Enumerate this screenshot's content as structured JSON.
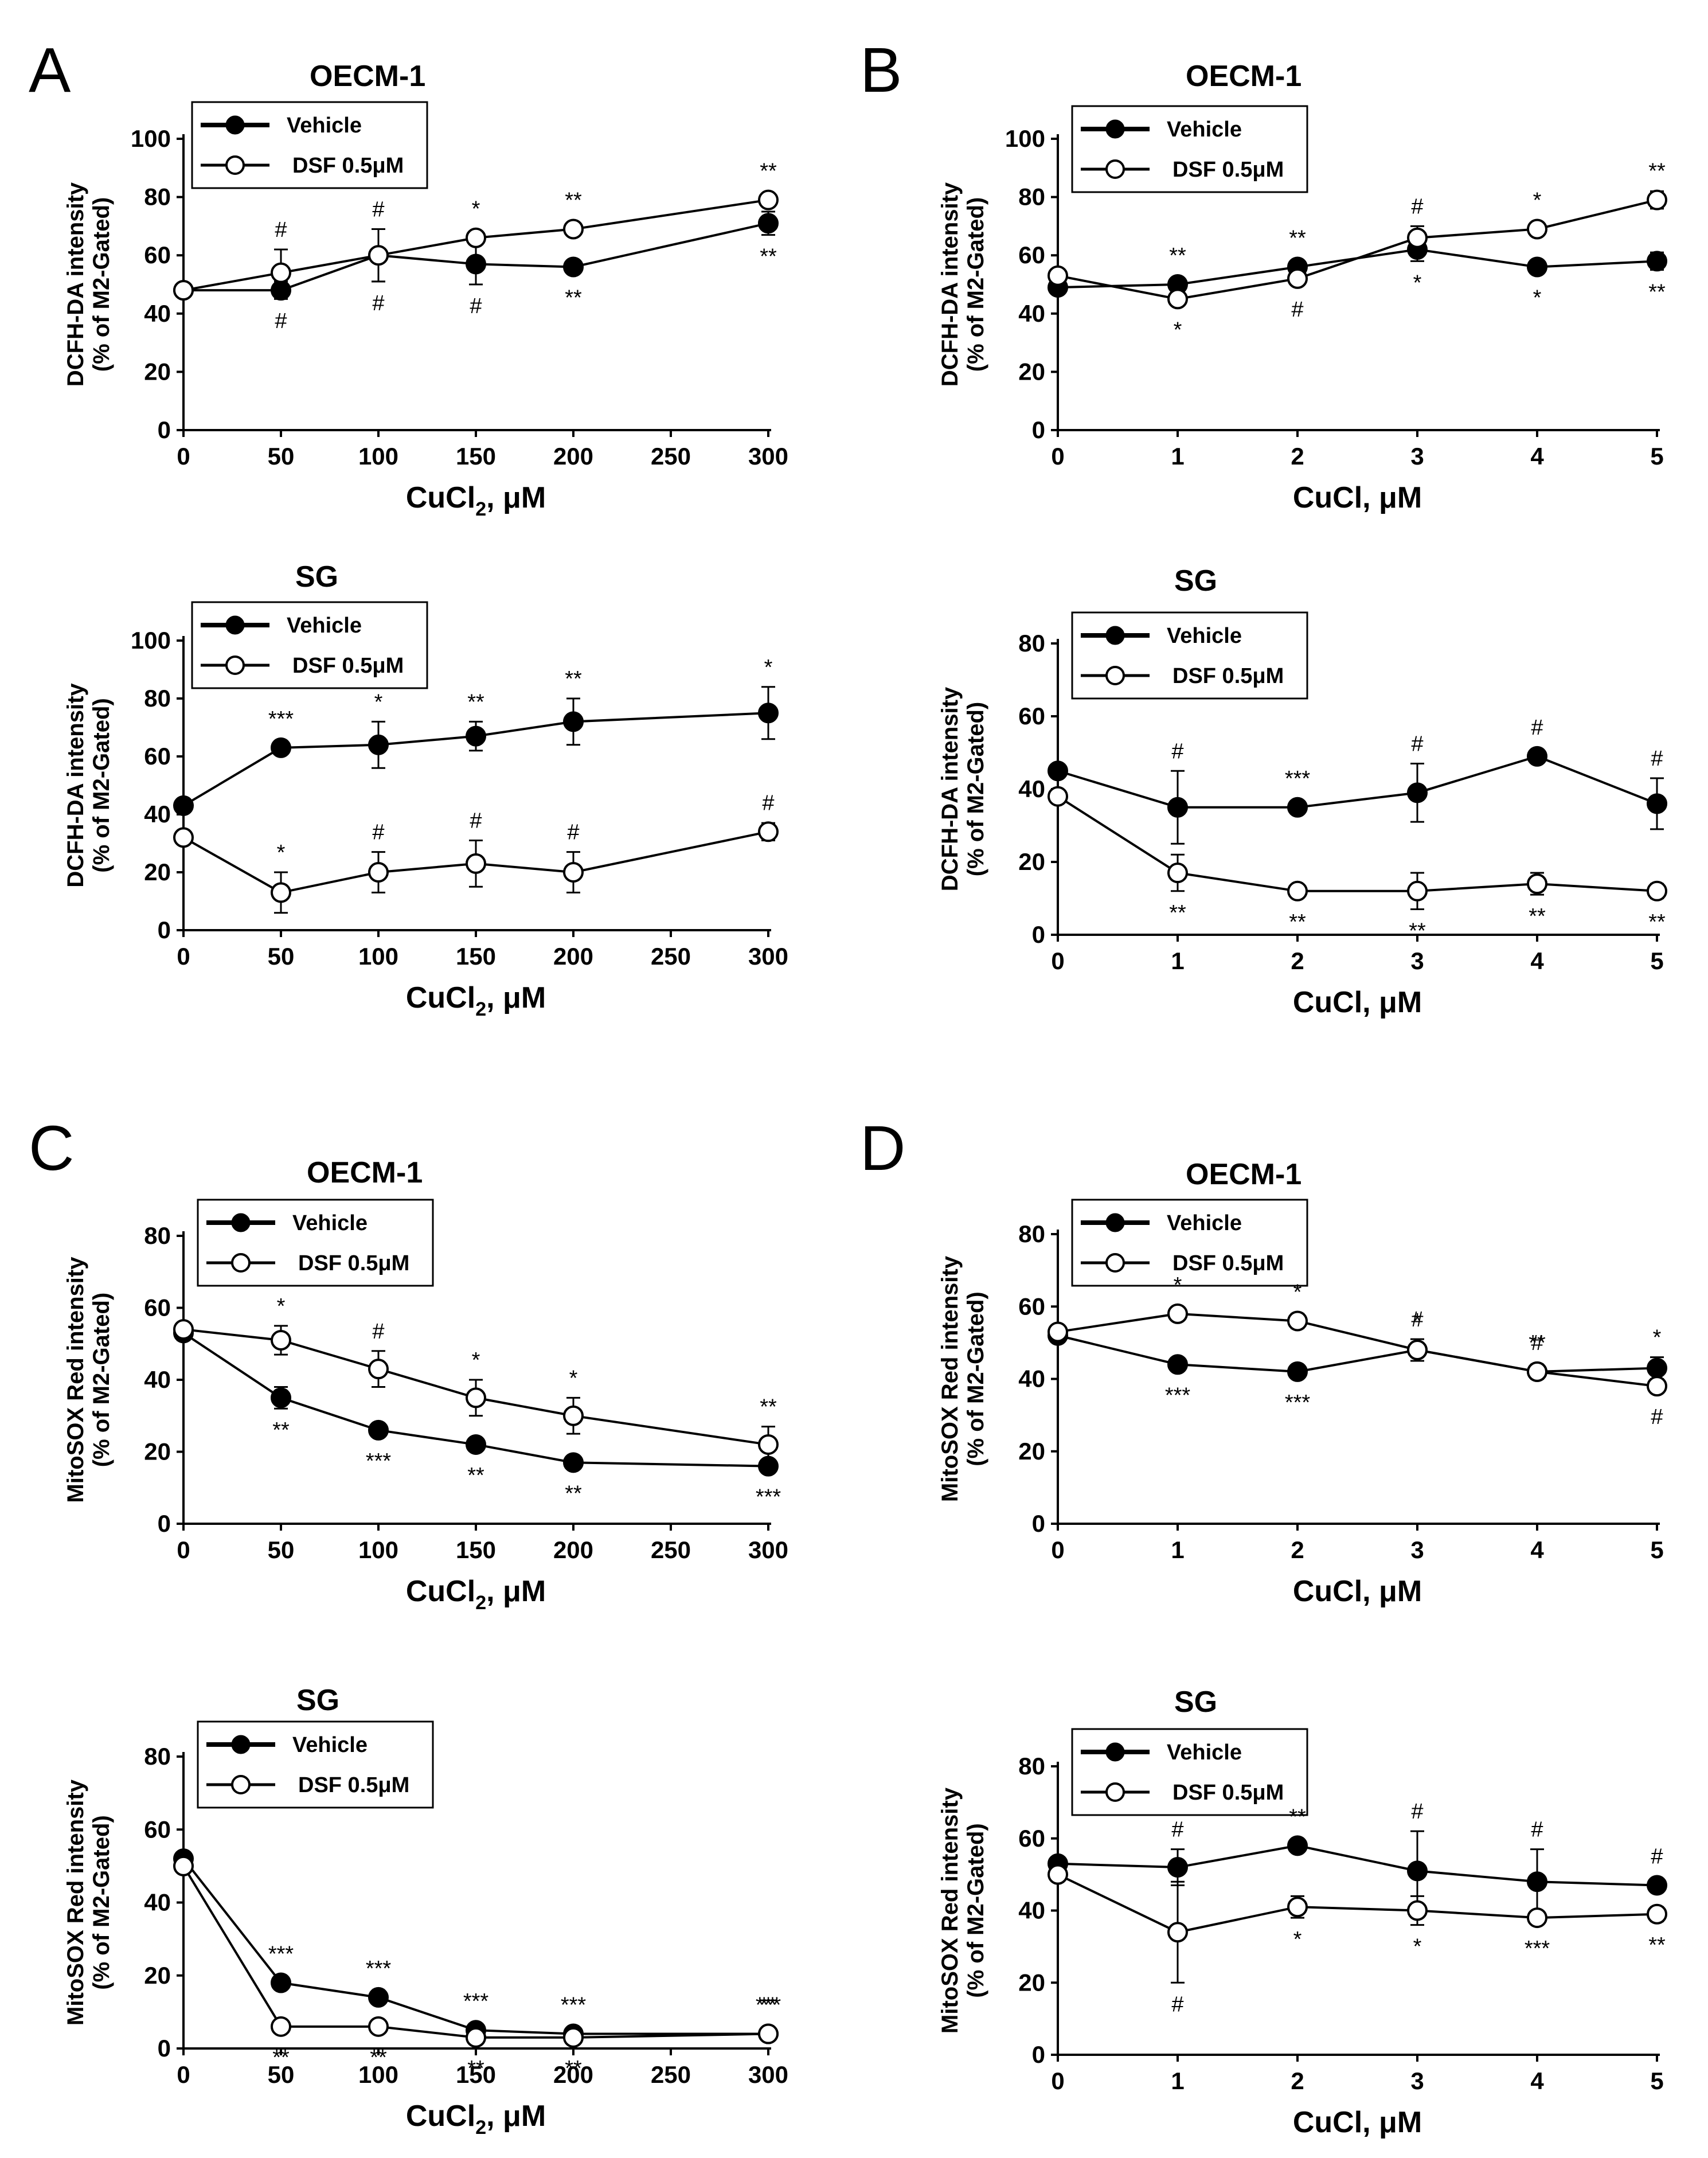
{
  "panel_letters": [
    "A",
    "B",
    "C",
    "D"
  ],
  "legend": {
    "vehicle": "Vehicle",
    "dsf": "DSF 0.5μM"
  },
  "ylabel_dcfh": {
    "line1": "DCFH-DA intensity",
    "line2": "(% of M2-Gated)"
  },
  "ylabel_mito": {
    "line1": "MitoSOX Red intensity",
    "line2": "(% of M2-Gated)"
  },
  "xlabel_cucl2": {
    "main": "CuCl",
    "sub": "2",
    "rest": ", μM"
  },
  "xlabel_cucl": {
    "main": "CuCl, μM"
  },
  "colors": {
    "line": "#000000",
    "open_fill": "#ffffff"
  },
  "chart_data": [
    {
      "id": "A1",
      "panel": "A",
      "type": "line",
      "title": "OECM-1",
      "x": [
        0,
        50,
        100,
        150,
        200,
        300
      ],
      "xticks": [
        0,
        50,
        100,
        150,
        200,
        250,
        300
      ],
      "xlim": [
        0,
        300
      ],
      "ylim": [
        0,
        100
      ],
      "yticks": [
        0,
        20,
        40,
        60,
        80,
        100
      ],
      "xlabel_key": "cucl2",
      "ylabel_key": "dcfh",
      "series": [
        {
          "name": "Vehicle",
          "values": [
            48,
            48,
            60,
            57,
            56,
            71
          ],
          "errors": [
            0,
            3,
            9,
            7,
            0,
            4
          ],
          "ann": [
            "",
            "#",
            "#",
            "#",
            "**",
            "**"
          ],
          "ann_pos": "below"
        },
        {
          "name": "DSF 0.5μM",
          "values": [
            48,
            54,
            60,
            66,
            69,
            79
          ],
          "errors": [
            0,
            8,
            9,
            0,
            0,
            2
          ],
          "ann": [
            "",
            "#",
            "#",
            "*",
            "**",
            "**"
          ],
          "ann_pos": "above"
        }
      ]
    },
    {
      "id": "A2",
      "panel": "A",
      "type": "line",
      "title": "SG",
      "x": [
        0,
        50,
        100,
        150,
        200,
        300
      ],
      "xticks": [
        0,
        50,
        100,
        150,
        200,
        250,
        300
      ],
      "xlim": [
        0,
        300
      ],
      "ylim": [
        0,
        100
      ],
      "yticks": [
        0,
        20,
        40,
        60,
        80,
        100
      ],
      "xlabel_key": "cucl2",
      "ylabel_key": "dcfh",
      "series": [
        {
          "name": "Vehicle",
          "values": [
            43,
            63,
            64,
            67,
            72,
            75
          ],
          "errors": [
            0,
            0,
            8,
            5,
            8,
            9
          ],
          "ann": [
            "",
            "***",
            "*",
            "**",
            "**",
            "*"
          ],
          "ann_pos": "above"
        },
        {
          "name": "DSF 0.5μM",
          "values": [
            32,
            13,
            20,
            23,
            20,
            34
          ],
          "errors": [
            0,
            7,
            7,
            8,
            7,
            3
          ],
          "ann": [
            "",
            "*",
            "#",
            "#",
            "#",
            "#"
          ],
          "ann_pos": "above"
        }
      ]
    },
    {
      "id": "B1",
      "panel": "B",
      "type": "line",
      "title": "OECM-1",
      "x": [
        0,
        1,
        2,
        3,
        4,
        5
      ],
      "xticks": [
        0,
        1,
        2,
        3,
        4,
        5
      ],
      "xlim": [
        0,
        5
      ],
      "ylim": [
        0,
        100
      ],
      "yticks": [
        0,
        20,
        40,
        60,
        80,
        100
      ],
      "xlabel_key": "cucl",
      "ylabel_key": "dcfh",
      "series": [
        {
          "name": "Vehicle",
          "values": [
            49,
            50,
            56,
            62,
            56,
            58
          ],
          "errors": [
            0,
            0,
            0,
            4,
            0,
            3
          ],
          "ann": [
            "",
            "**",
            "**",
            "*",
            "*",
            "**"
          ],
          "ann_pos": "mixed"
        },
        {
          "name": "DSF 0.5μM",
          "values": [
            53,
            45,
            52,
            66,
            69,
            79
          ],
          "errors": [
            0,
            0,
            0,
            4,
            0,
            3
          ],
          "ann": [
            "",
            "*",
            "#",
            "#",
            "*",
            "**"
          ],
          "ann_pos": "mixed"
        }
      ]
    },
    {
      "id": "B2",
      "panel": "B",
      "type": "line",
      "title": "SG",
      "x": [
        0,
        1,
        2,
        3,
        4,
        5
      ],
      "xticks": [
        0,
        1,
        2,
        3,
        4,
        5
      ],
      "xlim": [
        0,
        5
      ],
      "ylim": [
        0,
        80
      ],
      "yticks": [
        0,
        20,
        40,
        60,
        80
      ],
      "xlabel_key": "cucl",
      "ylabel_key": "dcfh",
      "series": [
        {
          "name": "Vehicle",
          "values": [
            45,
            35,
            35,
            39,
            49,
            36
          ],
          "errors": [
            0,
            10,
            0,
            8,
            0,
            7
          ],
          "ann": [
            "",
            "#",
            "***",
            "#",
            "#",
            "#"
          ],
          "ann_pos": "above"
        },
        {
          "name": "DSF 0.5μM",
          "values": [
            38,
            17,
            12,
            12,
            14,
            12
          ],
          "errors": [
            0,
            5,
            0,
            5,
            3,
            2
          ],
          "ann": [
            "",
            "**",
            "**",
            "**",
            "**",
            "**"
          ],
          "ann_pos": "below"
        }
      ]
    },
    {
      "id": "C1",
      "panel": "C",
      "type": "line",
      "title": "OECM-1",
      "x": [
        0,
        50,
        100,
        150,
        200,
        300
      ],
      "xticks": [
        0,
        50,
        100,
        150,
        200,
        250,
        300
      ],
      "xlim": [
        0,
        300
      ],
      "ylim": [
        0,
        80
      ],
      "yticks": [
        0,
        20,
        40,
        60,
        80
      ],
      "xlabel_key": "cucl2",
      "ylabel_key": "mito",
      "series": [
        {
          "name": "Vehicle",
          "values": [
            53,
            35,
            26,
            22,
            17,
            16
          ],
          "errors": [
            2,
            3,
            0,
            0,
            0,
            0
          ],
          "ann": [
            "",
            "**",
            "***",
            "**",
            "**",
            "***"
          ],
          "ann_pos": "below"
        },
        {
          "name": "DSF 0.5μM",
          "values": [
            54,
            51,
            43,
            35,
            30,
            22
          ],
          "errors": [
            0,
            4,
            5,
            5,
            5,
            5
          ],
          "ann": [
            "",
            "*",
            "#",
            "*",
            "*",
            "**"
          ],
          "ann_pos": "above"
        }
      ]
    },
    {
      "id": "C2",
      "panel": "C",
      "type": "line",
      "title": "SG",
      "x": [
        0,
        50,
        100,
        150,
        200,
        300
      ],
      "xticks": [
        0,
        50,
        100,
        150,
        200,
        250,
        300
      ],
      "xlim": [
        0,
        300
      ],
      "ylim": [
        0,
        80
      ],
      "yticks": [
        0,
        20,
        40,
        60,
        80
      ],
      "xlabel_key": "cucl2",
      "ylabel_key": "mito",
      "series": [
        {
          "name": "Vehicle",
          "values": [
            52,
            18,
            14,
            5,
            4,
            4
          ],
          "errors": [
            0,
            0,
            0,
            0,
            0,
            0
          ],
          "ann": [
            "",
            "***",
            "***",
            "***",
            "***",
            "***"
          ],
          "ann_pos": "above"
        },
        {
          "name": "DSF 0.5μM",
          "values": [
            50,
            6,
            6,
            3,
            3,
            4
          ],
          "errors": [
            0,
            0,
            0,
            0,
            0,
            0
          ],
          "ann": [
            "",
            "**",
            "**",
            "**",
            "**",
            "**"
          ],
          "ann_pos": "mixed"
        }
      ]
    },
    {
      "id": "D1",
      "panel": "D",
      "type": "line",
      "title": "OECM-1",
      "x": [
        0,
        1,
        2,
        3,
        4,
        5
      ],
      "xticks": [
        0,
        1,
        2,
        3,
        4,
        5
      ],
      "xlim": [
        0,
        5
      ],
      "ylim": [
        0,
        80
      ],
      "yticks": [
        0,
        20,
        40,
        60,
        80
      ],
      "xlabel_key": "cucl",
      "ylabel_key": "mito",
      "series": [
        {
          "name": "Vehicle",
          "values": [
            52,
            44,
            42,
            48,
            42,
            43
          ],
          "errors": [
            0,
            0,
            0,
            0,
            0,
            3
          ],
          "ann": [
            "",
            "***",
            "***",
            "*",
            "**",
            "*"
          ],
          "ann_pos": "mixed"
        },
        {
          "name": "DSF 0.5μM",
          "values": [
            53,
            58,
            56,
            48,
            42,
            38
          ],
          "errors": [
            0,
            0,
            2,
            3,
            2,
            0
          ],
          "ann": [
            "",
            "*",
            "*",
            "#",
            "#",
            "#"
          ],
          "ann_pos": "mixed"
        }
      ]
    },
    {
      "id": "D2",
      "panel": "D",
      "type": "line",
      "title": "SG",
      "x": [
        0,
        1,
        2,
        3,
        4,
        5
      ],
      "xticks": [
        0,
        1,
        2,
        3,
        4,
        5
      ],
      "xlim": [
        0,
        5
      ],
      "ylim": [
        0,
        80
      ],
      "yticks": [
        0,
        20,
        40,
        60,
        80
      ],
      "xlabel_key": "cucl",
      "ylabel_key": "mito",
      "series": [
        {
          "name": "Vehicle",
          "values": [
            53,
            52,
            58,
            51,
            48,
            47
          ],
          "errors": [
            0,
            5,
            0,
            11,
            9,
            0
          ],
          "ann": [
            "",
            "#",
            "**",
            "#",
            "#",
            "#"
          ],
          "ann_pos": "above"
        },
        {
          "name": "DSF 0.5μM",
          "values": [
            50,
            34,
            41,
            40,
            38,
            39
          ],
          "errors": [
            0,
            14,
            3,
            4,
            0,
            2
          ],
          "ann": [
            "",
            "#",
            "*",
            "*",
            "***",
            "**"
          ],
          "ann_pos": "below"
        }
      ]
    }
  ]
}
